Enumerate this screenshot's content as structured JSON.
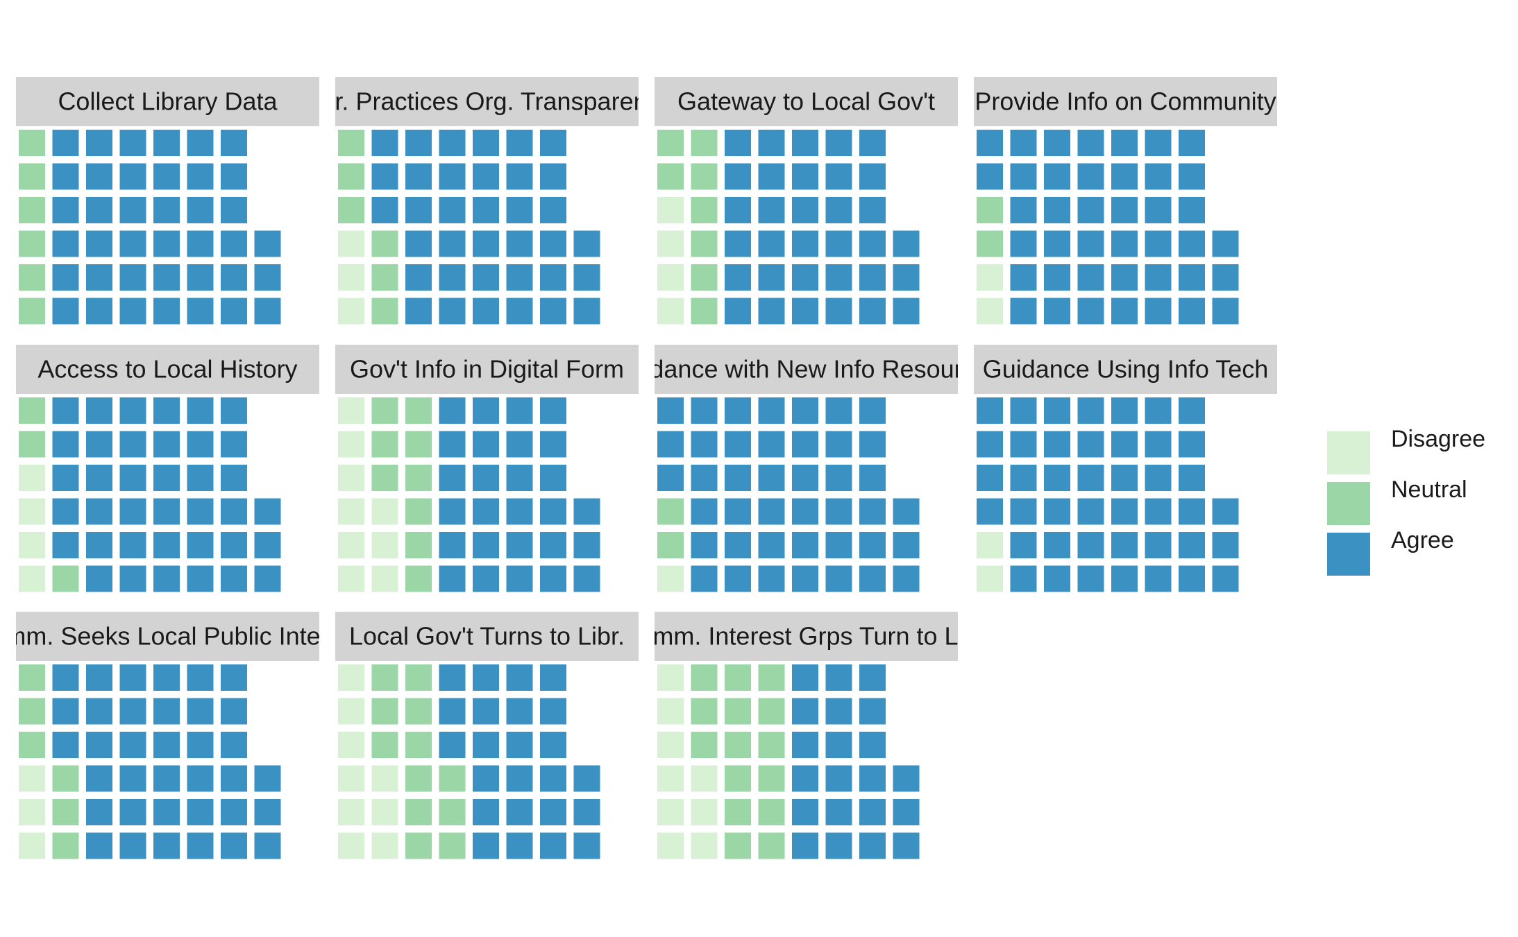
{
  "chart_data": {
    "type": "waffle",
    "categories": [
      "Disagree",
      "Neutral",
      "Agree"
    ],
    "colors": {
      "Disagree": "#d8f0d3",
      "Neutral": "#9ad6a6",
      "Agree": "#3a91c2"
    },
    "grid": "off",
    "legend": {
      "position": "right",
      "items": [
        "Disagree",
        "Neutral",
        "Agree"
      ]
    },
    "panels": [
      {
        "title": "Collect Library Data",
        "values": {
          "Disagree": 0,
          "Neutral": 6,
          "Agree": 39
        }
      },
      {
        "title": "Libr. Practices Org. Transparency",
        "values": {
          "Disagree": 3,
          "Neutral": 6,
          "Agree": 36
        }
      },
      {
        "title": "Gateway to Local Gov't",
        "values": {
          "Disagree": 4,
          "Neutral": 8,
          "Agree": 33
        }
      },
      {
        "title": "Provide Info on Community",
        "values": {
          "Disagree": 2,
          "Neutral": 2,
          "Agree": 41
        }
      },
      {
        "title": "Access to Local History",
        "values": {
          "Disagree": 4,
          "Neutral": 3,
          "Agree": 38
        }
      },
      {
        "title": "Gov't Info in Digital Form",
        "values": {
          "Disagree": 9,
          "Neutral": 9,
          "Agree": 27
        }
      },
      {
        "title": "Guidance with New Info Resources",
        "values": {
          "Disagree": 1,
          "Neutral": 2,
          "Agree": 42
        }
      },
      {
        "title": "Guidance Using Info Tech",
        "values": {
          "Disagree": 2,
          "Neutral": 0,
          "Agree": 43
        }
      },
      {
        "title": "Comm. Seeks Local Public Interest",
        "values": {
          "Disagree": 3,
          "Neutral": 6,
          "Agree": 36
        }
      },
      {
        "title": "Local Gov't Turns to Libr.",
        "values": {
          "Disagree": 9,
          "Neutral": 12,
          "Agree": 24
        }
      },
      {
        "title": "Comm. Interest Grps Turn to Libr.",
        "values": {
          "Disagree": 9,
          "Neutral": 15,
          "Agree": 21
        }
      }
    ]
  }
}
